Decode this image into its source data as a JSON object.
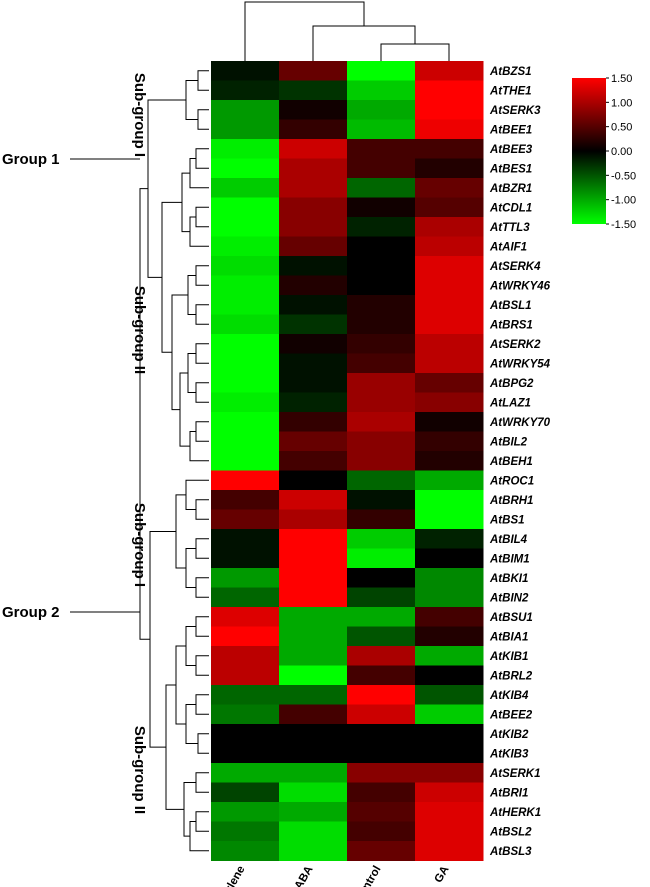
{
  "chart_data": {
    "type": "heatmap",
    "columns": [
      "ethylene",
      "ABA",
      "Control",
      "GA"
    ],
    "rows": [
      {
        "gene": "AtBZS1",
        "values": [
          -0.1,
          0.6,
          -1.5,
          1.2
        ]
      },
      {
        "gene": "AtTHE1",
        "values": [
          -0.2,
          -0.3,
          -1.2,
          1.5
        ]
      },
      {
        "gene": "AtSERK3",
        "values": [
          -0.9,
          0.1,
          -1.0,
          1.5
        ]
      },
      {
        "gene": "AtBEE1",
        "values": [
          -0.9,
          0.3,
          -1.1,
          1.4
        ]
      },
      {
        "gene": "AtBEE3",
        "values": [
          -1.4,
          1.2,
          0.4,
          0.4
        ]
      },
      {
        "gene": "AtBES1",
        "values": [
          -1.5,
          1.0,
          0.4,
          0.2
        ]
      },
      {
        "gene": "AtBZR1",
        "values": [
          -1.2,
          1.0,
          -0.6,
          0.6
        ]
      },
      {
        "gene": "AtCDL1",
        "values": [
          -1.5,
          0.8,
          0.1,
          0.5
        ]
      },
      {
        "gene": "AtTTL3",
        "values": [
          -1.5,
          0.8,
          -0.2,
          1.0
        ]
      },
      {
        "gene": "AtAIF1",
        "values": [
          -1.4,
          0.6,
          0.0,
          1.1
        ]
      },
      {
        "gene": "AtSERK4",
        "values": [
          -1.3,
          -0.1,
          0.0,
          1.3
        ]
      },
      {
        "gene": "AtWRKY46",
        "values": [
          -1.4,
          0.2,
          0.0,
          1.3
        ]
      },
      {
        "gene": "AtBSL1",
        "values": [
          -1.4,
          -0.1,
          0.2,
          1.3
        ]
      },
      {
        "gene": "AtBRS1",
        "values": [
          -1.3,
          -0.3,
          0.2,
          1.3
        ]
      },
      {
        "gene": "AtSERK2",
        "values": [
          -1.5,
          0.1,
          0.3,
          1.1
        ]
      },
      {
        "gene": "AtWRKY54",
        "values": [
          -1.5,
          -0.1,
          0.4,
          1.1
        ]
      },
      {
        "gene": "AtBPG2",
        "values": [
          -1.5,
          -0.1,
          0.9,
          0.6
        ]
      },
      {
        "gene": "AtLAZ1",
        "values": [
          -1.4,
          -0.2,
          0.9,
          0.8
        ]
      },
      {
        "gene": "AtWRKY70",
        "values": [
          -1.5,
          0.3,
          1.0,
          0.1
        ]
      },
      {
        "gene": "AtBIL2",
        "values": [
          -1.5,
          0.6,
          0.8,
          0.3
        ]
      },
      {
        "gene": "AtBEH1",
        "values": [
          -1.5,
          0.4,
          0.8,
          0.2
        ]
      },
      {
        "gene": "AtROC1",
        "values": [
          1.5,
          0.0,
          -0.6,
          -1.0
        ]
      },
      {
        "gene": "AtBRH1",
        "values": [
          0.4,
          1.2,
          -0.1,
          -1.5
        ]
      },
      {
        "gene": "AtBS1",
        "values": [
          0.6,
          1.0,
          0.3,
          -1.5
        ]
      },
      {
        "gene": "AtBIL4",
        "values": [
          -0.1,
          1.5,
          -1.2,
          -0.2
        ]
      },
      {
        "gene": "AtBIM1",
        "values": [
          -0.1,
          1.5,
          -1.4,
          0.0
        ]
      },
      {
        "gene": "AtBKI1",
        "values": [
          -0.9,
          1.5,
          0.0,
          -0.8
        ]
      },
      {
        "gene": "AtBIN2",
        "values": [
          -0.6,
          1.5,
          -0.4,
          -0.8
        ]
      },
      {
        "gene": "AtBSU1",
        "values": [
          1.3,
          -1.0,
          -1.0,
          0.4
        ]
      },
      {
        "gene": "AtBIA1",
        "values": [
          1.5,
          -1.0,
          -0.5,
          0.2
        ]
      },
      {
        "gene": "AtKIB1",
        "values": [
          1.1,
          -1.0,
          1.0,
          -1.0
        ]
      },
      {
        "gene": "AtBRL2",
        "values": [
          1.1,
          -1.5,
          0.4,
          0.0
        ]
      },
      {
        "gene": "AtKIB4",
        "values": [
          -0.6,
          -0.6,
          1.5,
          -0.5
        ]
      },
      {
        "gene": "AtBEE2",
        "values": [
          -0.7,
          0.4,
          1.2,
          -1.2
        ]
      },
      {
        "gene": "AtKIB2",
        "values": [
          0.0,
          0.0,
          0.0,
          0.0
        ]
      },
      {
        "gene": "AtKIB3",
        "values": [
          0.0,
          0.0,
          0.0,
          0.0
        ]
      },
      {
        "gene": "AtSERK1",
        "values": [
          -1.0,
          -1.0,
          0.8,
          0.8
        ]
      },
      {
        "gene": "AtBRI1",
        "values": [
          -0.4,
          -1.3,
          0.4,
          1.2
        ]
      },
      {
        "gene": "AtHERK1",
        "values": [
          -0.9,
          -1.0,
          0.5,
          1.3
        ]
      },
      {
        "gene": "AtBSL2",
        "values": [
          -0.7,
          -1.3,
          0.4,
          1.3
        ]
      },
      {
        "gene": "AtBSL3",
        "values": [
          -0.8,
          -1.3,
          0.6,
          1.3
        ]
      }
    ],
    "colorscale": {
      "low": "#00ff00",
      "mid": "#000000",
      "high": "#ff0000"
    },
    "vmin": -1.5,
    "vmax": 1.5,
    "colorbar_ticks": [
      "1.50",
      "1.00",
      "0.50",
      "0.00",
      "-0.50",
      "-1.00",
      "-1.50"
    ],
    "row_groups": {
      "groups": [
        "Group 1",
        "Group 2"
      ],
      "subgroups": [
        "Sub-group I",
        "Sub-group II",
        "Sub-group I",
        "Sub-group II"
      ]
    },
    "legend_position": "top-right"
  }
}
